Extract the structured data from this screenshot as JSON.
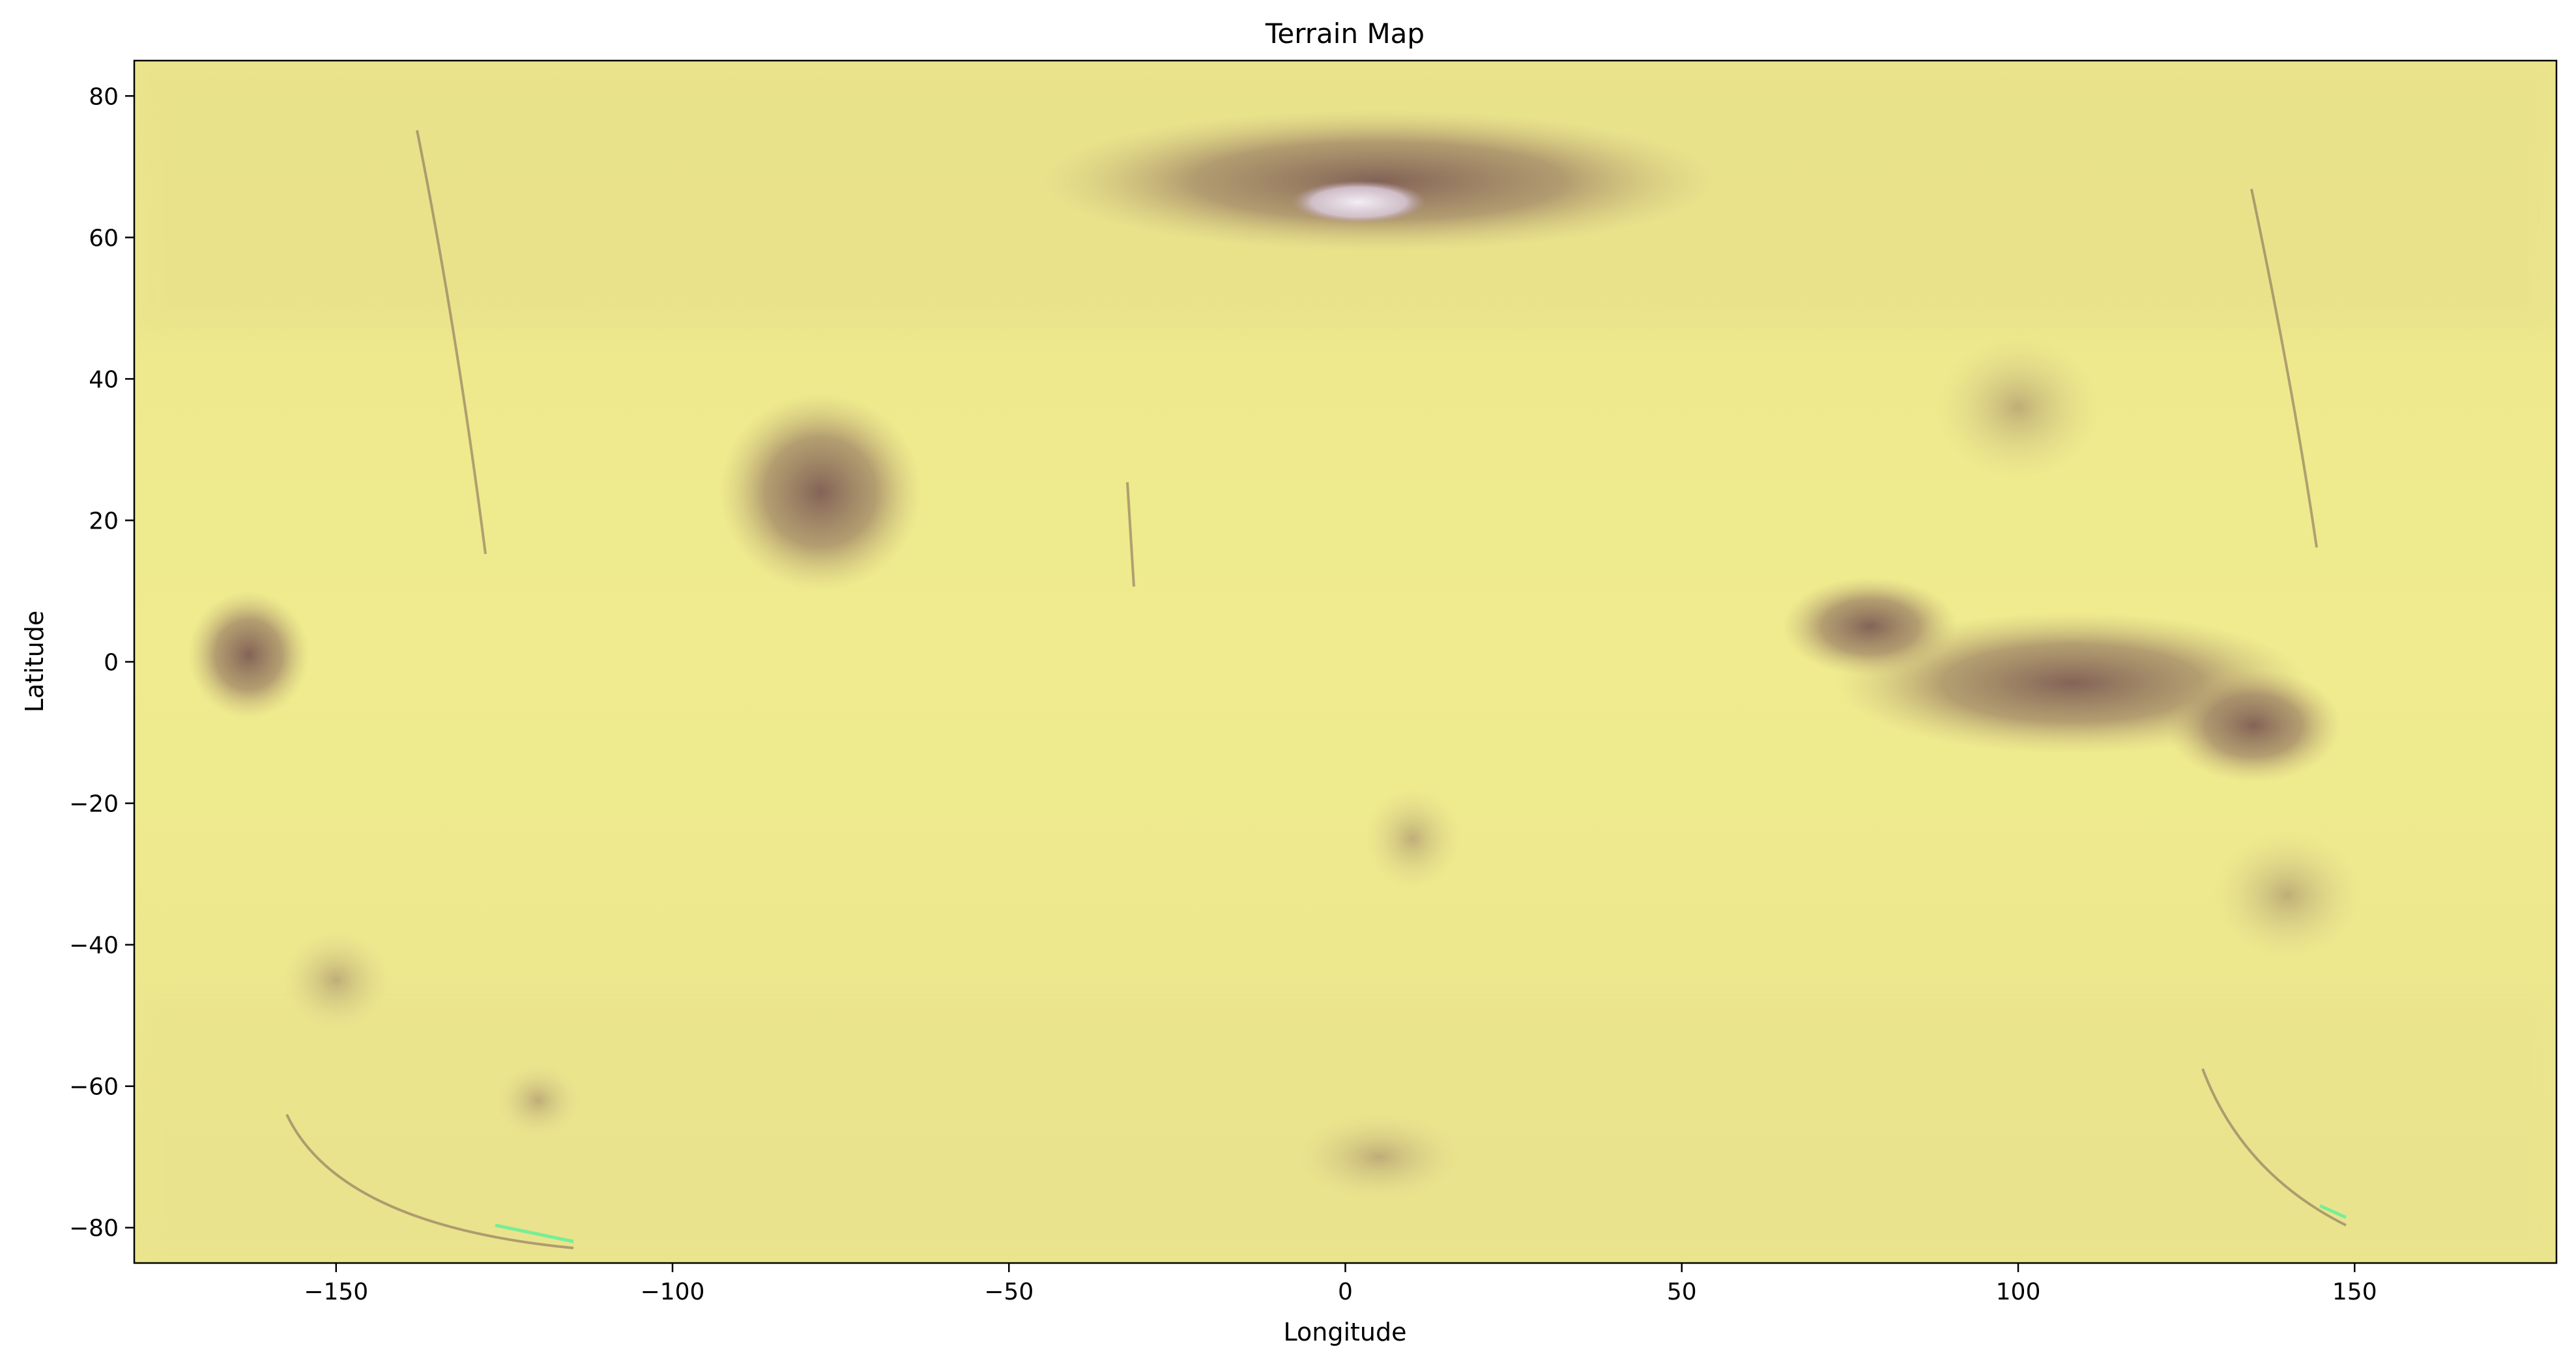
{
  "title": "Terrain Map",
  "colors": {
    "terrain_low": "#f2f08e",
    "terrain_mid": "#e6e088",
    "terrain_shade": "#c8b47a",
    "terrain_dark": "#8a6a5c",
    "terrain_peak": "#e8e0ee",
    "terrain_artifact": "#59f09a",
    "frame": "#000000"
  },
  "chart_data": {
    "type": "heatmap",
    "title": "Terrain Map",
    "xlabel": "Longitude",
    "ylabel": "Latitude",
    "xlim": [
      -180,
      180
    ],
    "ylim": [
      -85,
      85
    ],
    "x_ticks": [
      -150,
      -100,
      -50,
      0,
      50,
      100,
      150
    ],
    "y_ticks": [
      80,
      60,
      40,
      20,
      0,
      -20,
      -40,
      -60,
      -80
    ],
    "x_tick_labels": [
      "−150",
      "−100",
      "−50",
      "0",
      "50",
      "100",
      "150"
    ],
    "y_tick_labels": [
      "80",
      "60",
      "40",
      "20",
      "0",
      "−20",
      "−40",
      "−60",
      "−80"
    ],
    "colormap": "terrain-like yellow to brown",
    "grid": false,
    "legend": "none",
    "features": [
      {
        "kind": "basin",
        "lon": 5,
        "lat": 68,
        "rx": 50,
        "ry": 10,
        "tone": "dark"
      },
      {
        "kind": "ice-cap",
        "lon": 2,
        "lat": 65,
        "rx": 10,
        "ry": 3,
        "tone": "peak"
      },
      {
        "kind": "highland",
        "lon": -78,
        "lat": 24,
        "rx": 15,
        "ry": 14,
        "tone": "dark"
      },
      {
        "kind": "summit",
        "lon": -163,
        "lat": 1,
        "rx": 9,
        "ry": 9,
        "tone": "dark"
      },
      {
        "kind": "plateau",
        "lon": 108,
        "lat": -3,
        "rx": 35,
        "ry": 10,
        "tone": "dark"
      },
      {
        "kind": "plateau",
        "lon": 135,
        "lat": -9,
        "rx": 13,
        "ry": 8,
        "tone": "dark"
      },
      {
        "kind": "plateau",
        "lon": 78,
        "lat": 5,
        "rx": 13,
        "ry": 7,
        "tone": "dark"
      },
      {
        "kind": "rise",
        "lon": 100,
        "lat": 36,
        "rx": 12,
        "ry": 10,
        "tone": "shade"
      },
      {
        "kind": "crater",
        "lon": 140,
        "lat": -33,
        "rx": 11,
        "ry": 9,
        "tone": "shade"
      },
      {
        "kind": "crater",
        "lon": 10,
        "lat": -25,
        "rx": 7,
        "ry": 7,
        "tone": "shade"
      },
      {
        "kind": "basin",
        "lon": 5,
        "lat": -70,
        "rx": 12,
        "ry": 6,
        "tone": "shade"
      },
      {
        "kind": "rise",
        "lon": -150,
        "lat": -45,
        "rx": 8,
        "ry": 7,
        "tone": "shade"
      },
      {
        "kind": "rise",
        "lon": -120,
        "lat": -62,
        "rx": 6,
        "ry": 5,
        "tone": "shade"
      }
    ]
  }
}
